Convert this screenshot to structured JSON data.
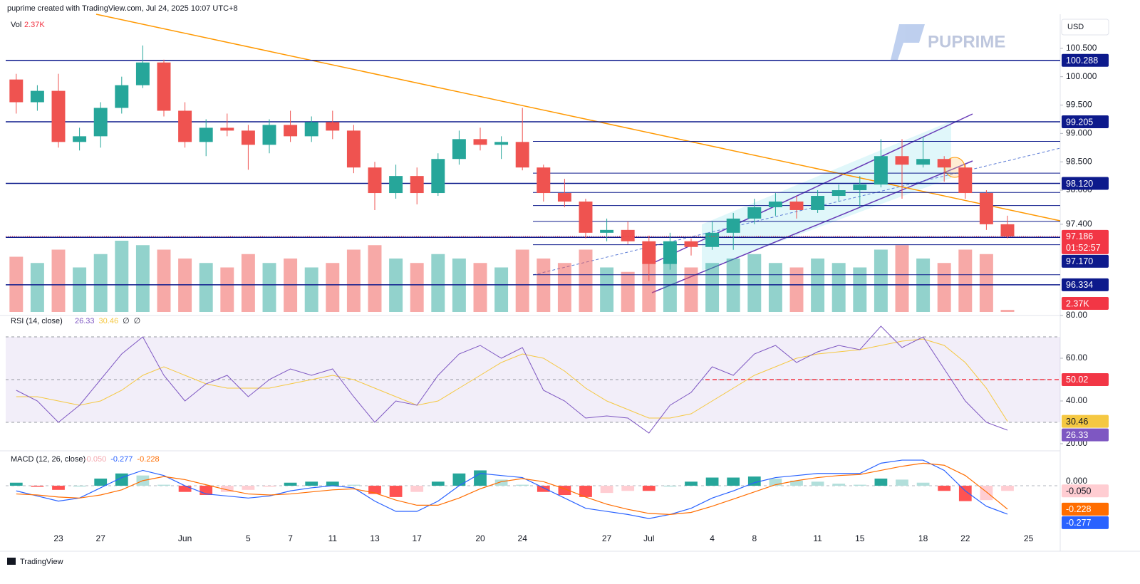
{
  "header": {
    "credit": "puprime created with TradingView.com, Jul 24, 2025 10:07 UTC+8",
    "currency": "USD",
    "watermark": "PUPRIME",
    "footer": "TradingView"
  },
  "chart_data": [
    {
      "type": "candlestick",
      "categories": [
        null,
        null,
        "23",
        null,
        "27",
        null,
        null,
        null,
        "Jun",
        null,
        null,
        "5",
        null,
        "7",
        null,
        "11",
        null,
        "13",
        null,
        "17",
        null,
        null,
        "20",
        null,
        "24",
        null,
        null,
        null,
        "27",
        null,
        "Jul",
        null,
        null,
        "4",
        null,
        "8",
        null,
        null,
        "11",
        null,
        "15",
        null,
        null,
        "18",
        null,
        "22",
        null,
        null,
        "25"
      ],
      "open": [
        99.95,
        99.55,
        99.75,
        98.85,
        98.95,
        99.45,
        99.85,
        100.25,
        99.4,
        98.85,
        99.1,
        99.05,
        98.8,
        99.15,
        98.95,
        99.2,
        99.05,
        98.4,
        97.95,
        98.25,
        97.95,
        98.55,
        98.9,
        98.8,
        98.85,
        98.4,
        97.95,
        97.8,
        97.25,
        97.3,
        97.1,
        96.7,
        97.1,
        97.0,
        97.25,
        97.5,
        97.7,
        97.8,
        97.65,
        97.9,
        98.0,
        98.1,
        98.6,
        98.45,
        98.55,
        98.4,
        97.95,
        97.4,
        null
      ],
      "high": [
        100.05,
        99.85,
        100.05,
        99.1,
        99.55,
        100.0,
        100.55,
        100.3,
        99.55,
        99.25,
        99.35,
        99.15,
        99.25,
        99.4,
        99.3,
        99.4,
        99.15,
        98.5,
        98.45,
        98.4,
        98.65,
        99.05,
        99.1,
        98.95,
        99.45,
        98.45,
        98.2,
        97.85,
        97.5,
        97.45,
        97.2,
        97.25,
        97.15,
        97.45,
        97.6,
        97.85,
        97.95,
        97.9,
        98.0,
        98.1,
        98.25,
        98.9,
        98.9,
        98.95,
        98.6,
        98.45,
        98.0,
        97.55,
        null
      ],
      "low": [
        99.35,
        99.4,
        98.75,
        98.7,
        98.75,
        99.35,
        99.8,
        99.3,
        98.75,
        98.6,
        98.95,
        98.36,
        98.65,
        98.85,
        98.85,
        98.9,
        98.3,
        97.65,
        97.85,
        97.75,
        97.9,
        98.45,
        98.7,
        98.55,
        98.35,
        97.8,
        97.7,
        97.15,
        97.1,
        97.05,
        96.4,
        96.6,
        96.85,
        96.95,
        96.95,
        97.4,
        97.55,
        97.5,
        97.6,
        97.8,
        97.7,
        98.05,
        97.85,
        98.4,
        98.15,
        97.85,
        97.3,
        97.15,
        null
      ],
      "close": [
        99.55,
        99.75,
        98.85,
        98.95,
        99.45,
        99.85,
        100.25,
        99.4,
        98.85,
        99.1,
        99.05,
        98.8,
        99.15,
        98.95,
        99.2,
        99.05,
        98.4,
        97.95,
        98.25,
        97.95,
        98.55,
        98.9,
        98.8,
        98.85,
        98.4,
        97.95,
        97.8,
        97.25,
        97.3,
        97.1,
        96.7,
        97.1,
        97.0,
        97.25,
        97.5,
        97.7,
        97.8,
        97.65,
        97.9,
        98.0,
        98.1,
        98.6,
        98.45,
        98.55,
        98.4,
        97.95,
        97.4,
        97.186,
        null
      ],
      "colors": {
        "up": "#26a69a",
        "down": "#ef5350"
      },
      "ylim": [
        95.83,
        101.1
      ],
      "yticks": [
        {
          "value": 100.5,
          "label": "100.500"
        },
        {
          "value": 100,
          "label": "100.000"
        },
        {
          "value": 99.5,
          "label": "99.500"
        },
        {
          "value": 99,
          "label": "99.000"
        },
        {
          "value": 98.5,
          "label": "98.500"
        },
        {
          "value": 98,
          "label": "98.000"
        },
        {
          "value": 97.4,
          "label": "97.400"
        }
      ],
      "levels": [
        {
          "value": 100.288,
          "label": "100.288"
        },
        {
          "value": 99.205,
          "label": "99.205"
        },
        {
          "value": 98.12,
          "label": "98.120"
        },
        {
          "value": 97.17,
          "label": "97.170"
        },
        {
          "value": 96.334,
          "label": "96.334"
        }
      ],
      "level_color": "#0d1a8c",
      "minor_levels": [
        98.86,
        98.3,
        97.96,
        97.73,
        97.45,
        97.04,
        96.51
      ],
      "current_price": {
        "value": 97.186,
        "label": "97.186",
        "countdown": "01:52:57",
        "color": "#f23645"
      }
    },
    {
      "type": "volume",
      "title": "Vol",
      "last_label": "2.37K",
      "values": [
        62,
        55,
        70,
        50,
        65,
        80,
        75,
        70,
        60,
        55,
        50,
        65,
        55,
        60,
        50,
        55,
        70,
        75,
        60,
        55,
        65,
        60,
        55,
        50,
        70,
        60,
        55,
        70,
        50,
        45,
        75,
        60,
        50,
        55,
        60,
        65,
        55,
        50,
        60,
        55,
        50,
        70,
        75,
        60,
        55,
        70,
        65,
        2.37,
        null
      ],
      "ylim": [
        0,
        80
      ]
    },
    {
      "type": "rsi",
      "title": "RSI (14, close)",
      "extra": [
        "∅",
        "∅"
      ],
      "series": [
        {
          "color": "#7e57c2",
          "last_label": "26.33",
          "values": [
            45,
            40,
            30,
            38,
            50,
            62,
            70,
            52,
            40,
            48,
            52,
            42,
            50,
            55,
            52,
            55,
            42,
            30,
            40,
            38,
            52,
            62,
            66,
            60,
            65,
            45,
            40,
            32,
            33,
            32,
            25,
            38,
            44,
            56,
            52,
            62,
            66,
            58,
            63,
            66,
            64,
            75,
            65,
            70,
            55,
            40,
            30,
            26.33,
            null
          ]
        },
        {
          "color": "#f5c842",
          "last_label": "30.46",
          "values": [
            42,
            42,
            40,
            38,
            40,
            45,
            52,
            56,
            52,
            48,
            46,
            46,
            46,
            48,
            50,
            52,
            50,
            46,
            42,
            38,
            40,
            46,
            52,
            58,
            62,
            60,
            54,
            46,
            40,
            36,
            32,
            32,
            34,
            40,
            46,
            52,
            56,
            60,
            62,
            63,
            64,
            66,
            68,
            69,
            66,
            58,
            46,
            30.46,
            null
          ]
        }
      ],
      "ylim": [
        17,
        80
      ],
      "yticks": [
        {
          "value": 80,
          "label": "80.00"
        },
        {
          "value": 60,
          "label": "60.00"
        },
        {
          "value": 40,
          "label": "40.00"
        },
        {
          "value": 20,
          "label": "20.00"
        }
      ],
      "band": [
        30,
        70
      ],
      "midline": 50,
      "level": {
        "value": 50.02,
        "label": "50.02",
        "color": "#f23645"
      }
    },
    {
      "type": "macd",
      "title": "MACD (12, 26, close)",
      "histogram": {
        "last_label": "-0.050",
        "values": [
          0.03,
          -0.01,
          -0.04,
          0,
          0.07,
          0.12,
          0.1,
          0.01,
          -0.06,
          -0.09,
          -0.06,
          -0.04,
          -0.01,
          0.03,
          0.04,
          0.04,
          0.01,
          -0.08,
          -0.11,
          -0.06,
          0.04,
          0.12,
          0.15,
          0.06,
          0.01,
          -0.06,
          -0.09,
          -0.11,
          -0.07,
          -0.05,
          -0.05,
          0,
          0.04,
          0.08,
          0.08,
          0.09,
          0.07,
          0.05,
          0.04,
          0.02,
          0.01,
          0.07,
          0.06,
          0.03,
          -0.05,
          -0.15,
          -0.14,
          -0.05,
          null
        ]
      },
      "series": [
        {
          "color": "#2962ff",
          "last_label": "-0.277",
          "values": [
            -0.05,
            -0.1,
            -0.15,
            -0.12,
            -0.02,
            0.08,
            0.15,
            0.1,
            0,
            -0.08,
            -0.1,
            -0.12,
            -0.1,
            -0.05,
            -0.02,
            0,
            -0.02,
            -0.15,
            -0.25,
            -0.25,
            -0.15,
            0,
            0.12,
            0.1,
            0.08,
            -0.02,
            -0.12,
            -0.22,
            -0.25,
            -0.28,
            -0.32,
            -0.28,
            -0.22,
            -0.12,
            -0.05,
            0.03,
            0.08,
            0.1,
            0.12,
            0.12,
            0.12,
            0.22,
            0.25,
            0.25,
            0.15,
            -0.05,
            -0.2,
            -0.277,
            null
          ]
        },
        {
          "color": "#ff6d00",
          "last_label": "-0.228",
          "values": [
            -0.08,
            -0.09,
            -0.11,
            -0.12,
            -0.09,
            -0.04,
            0.05,
            0.09,
            0.06,
            0.01,
            -0.04,
            -0.08,
            -0.09,
            -0.08,
            -0.06,
            -0.04,
            -0.03,
            -0.07,
            -0.14,
            -0.19,
            -0.19,
            -0.12,
            -0.03,
            0.04,
            0.07,
            0.04,
            -0.03,
            -0.11,
            -0.18,
            -0.23,
            -0.27,
            -0.28,
            -0.26,
            -0.2,
            -0.13,
            -0.06,
            0.01,
            0.05,
            0.08,
            0.1,
            0.11,
            0.15,
            0.19,
            0.22,
            0.2,
            0.1,
            -0.06,
            -0.228,
            null
          ]
        }
      ],
      "ylim": [
        -0.625,
        0.32
      ],
      "yticks": [
        {
          "value": 0,
          "label": "0.000"
        }
      ]
    }
  ]
}
